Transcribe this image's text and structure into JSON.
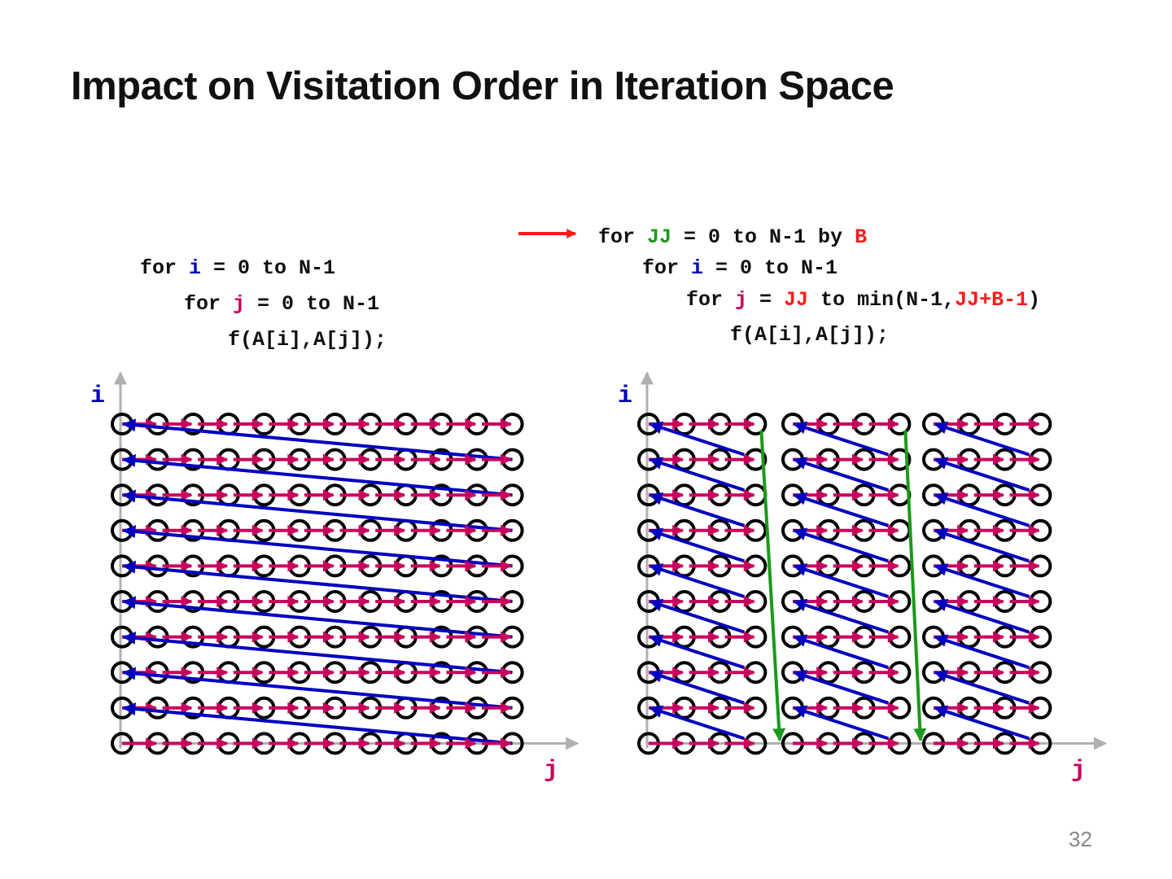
{
  "title": "Impact on Visitation Order in Iteration Space",
  "code_left": {
    "lines": [
      {
        "tokens": [
          {
            "text": "for "
          },
          {
            "text": "i"
          },
          {
            "text": " = 0 to N-1"
          }
        ]
      },
      {
        "tokens": [
          {
            "text": "for "
          },
          {
            "text": "j"
          },
          {
            "text": " = 0 to N-1"
          }
        ]
      },
      {
        "tokens": [
          {
            "text": "f(A[i],A[j]);"
          }
        ]
      }
    ]
  },
  "code_right": {
    "lines": [
      {
        "tokens": [
          {
            "text": "for "
          },
          {
            "text": "JJ"
          },
          {
            "text": " = 0 to N-1 by "
          },
          {
            "text": "B"
          }
        ]
      },
      {
        "tokens": [
          {
            "text": "for "
          },
          {
            "text": "i"
          },
          {
            "text": " = 0 to N-1"
          }
        ]
      },
      {
        "tokens": [
          {
            "text": "for "
          },
          {
            "text": "j"
          },
          {
            "text": " = "
          },
          {
            "text": "JJ"
          },
          {
            "text": " to min(N-1,"
          },
          {
            "text": "JJ+B-1"
          },
          {
            "text": ")"
          }
        ]
      },
      {
        "tokens": [
          {
            "text": "f(A[i],A[j]);"
          }
        ]
      }
    ]
  },
  "left_plot": {
    "y_axis_label": "i",
    "x_axis_label": "j",
    "columns": 12,
    "rows": 10
  },
  "right_plot": {
    "y_axis_label": "i",
    "x_axis_label": "j",
    "columns": 12,
    "rows": 10,
    "block_size": 4
  },
  "page_number": "32",
  "colors": {
    "i": "#0000c0",
    "j": "#c8005c",
    "JJ": "#1a9a1a",
    "B": "#ff1a1a",
    "axis": "#b0b0b0"
  }
}
